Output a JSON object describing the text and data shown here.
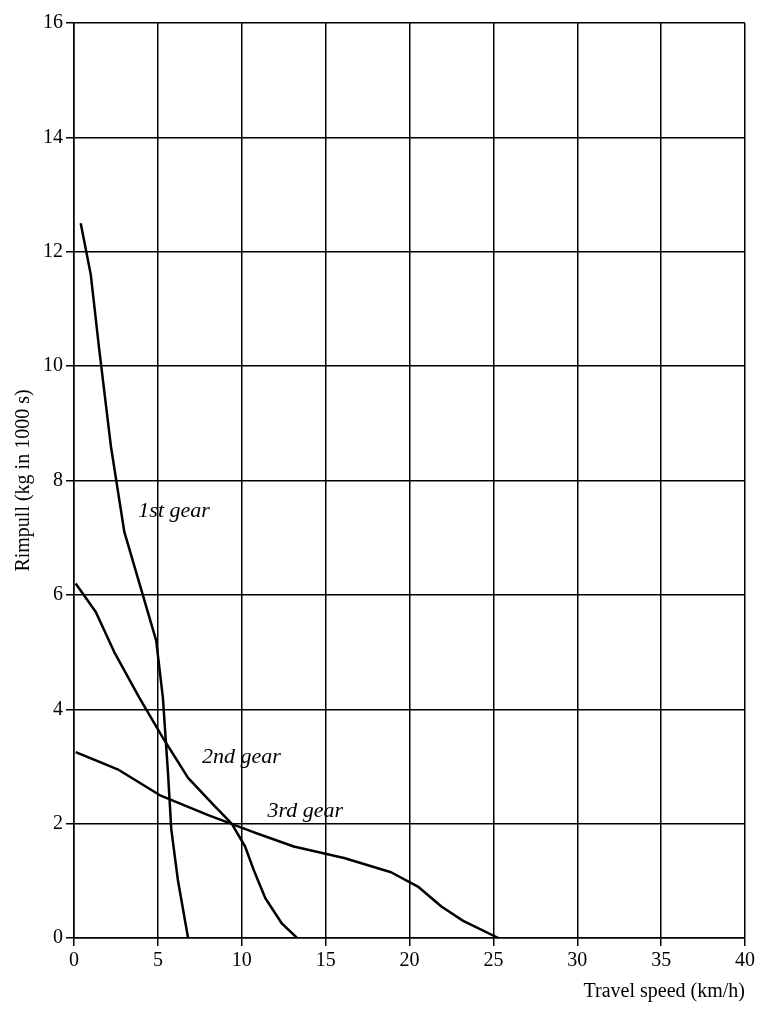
{
  "chart_data": {
    "type": "line",
    "xlabel": "Travel speed (km/h)",
    "ylabel": "Rimpull (kg in 1000 s)",
    "xlim": [
      0,
      40
    ],
    "xticks": [
      0,
      5,
      10,
      15,
      20,
      25,
      30,
      35,
      40
    ],
    "ylim": [
      0,
      16
    ],
    "yticks": [
      0,
      2,
      4,
      6,
      8,
      10,
      12,
      14,
      16
    ],
    "grid": true,
    "legend": false,
    "marker": "none",
    "line_style": "solid",
    "series": [
      {
        "name": "1st gear",
        "color": "#000000",
        "x": [
          0.4,
          1.0,
          1.5,
          2.2,
          3.0,
          4.0,
          4.9,
          5.3,
          5.6,
          5.8,
          6.2,
          6.8
        ],
        "values": [
          12.5,
          11.6,
          10.3,
          8.6,
          7.1,
          6.1,
          5.2,
          4.2,
          2.9,
          1.9,
          1.0,
          0
        ]
      },
      {
        "name": "2nd gear",
        "color": "#000000",
        "x": [
          0.1,
          1.3,
          2.4,
          3.9,
          5.3,
          6.8,
          8.4,
          9.4,
          10.2,
          10.7,
          11.4,
          12.4,
          13.3
        ],
        "values": [
          6.2,
          5.7,
          5.0,
          4.2,
          3.5,
          2.8,
          2.3,
          2.0,
          1.6,
          1.2,
          0.7,
          0.25,
          0
        ]
      },
      {
        "name": "3rd gear",
        "color": "#000000",
        "x": [
          0.1,
          2.6,
          5.1,
          8.0,
          10.7,
          13.1,
          16.1,
          18.9,
          20.5,
          21.9,
          23.2,
          25.3
        ],
        "values": [
          3.25,
          2.95,
          2.5,
          2.15,
          1.85,
          1.6,
          1.4,
          1.15,
          0.9,
          0.55,
          0.3,
          0
        ]
      }
    ]
  }
}
